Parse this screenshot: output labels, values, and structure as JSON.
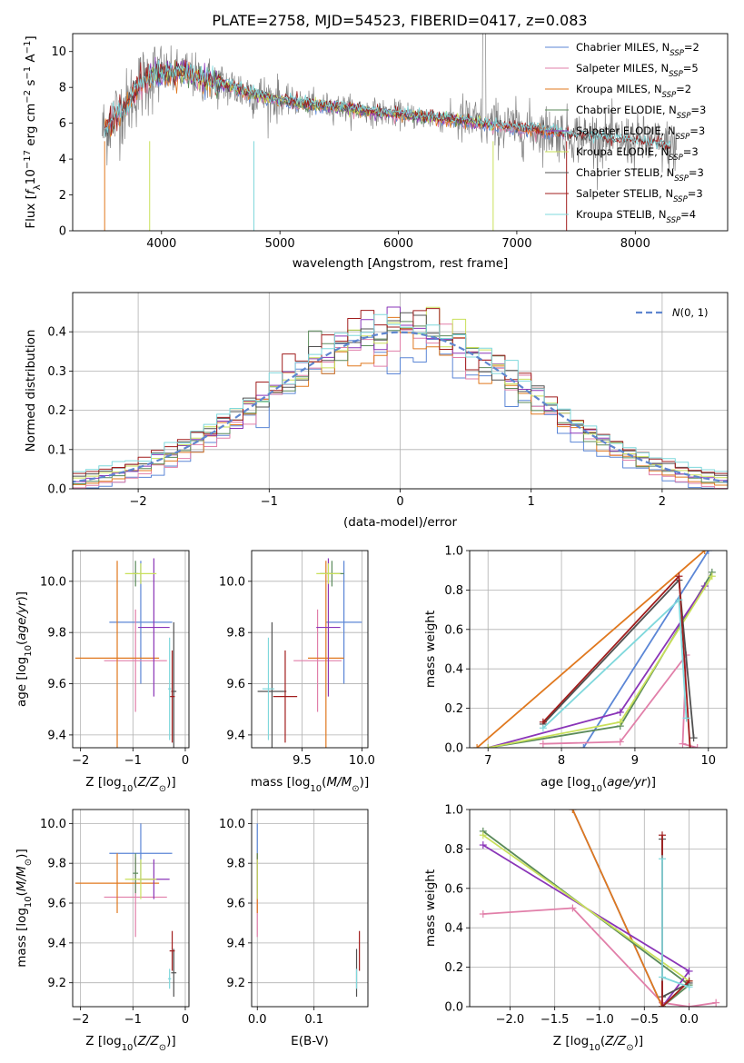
{
  "title": "PLATE=2758, MJD=54523, FIBERID=0417, z=0.083",
  "colors": {
    "chabrier_miles": "#5b86d6",
    "salpeter_miles": "#e17fa9",
    "kroupa_miles": "#e0781e",
    "chabrier_elodie": "#5a8a5a",
    "salpeter_elodie": "#8a35b8",
    "kroupa_elodie": "#c9e05a",
    "chabrier_stelib": "#505050",
    "salpeter_stelib": "#a11d1d",
    "kroupa_stelib": "#7fd8dc",
    "data": "#808080",
    "gauss": "#5f86cf"
  },
  "chart_data": [
    {
      "id": "spectrum",
      "type": "line",
      "xlabel": "wavelength [Angstrom, rest frame]",
      "ylabel": "Flux [f_λ 10^-17 erg cm^-2 s^-1 A^-1]",
      "xlim": [
        3250,
        8780
      ],
      "ylim": [
        0,
        11
      ],
      "xticks": [
        4000,
        5000,
        6000,
        7000,
        8000
      ],
      "yticks": [
        0,
        2,
        4,
        6,
        8,
        10
      ],
      "legend_placement": "upper right",
      "legend": [
        {
          "key": "chabrier_miles",
          "label": "Chabrier MILES, N",
          "sub": "SSP",
          "eq": "=2"
        },
        {
          "key": "salpeter_miles",
          "label": "Salpeter MILES, N",
          "sub": "SSP",
          "eq": "=5"
        },
        {
          "key": "kroupa_miles",
          "label": "Kroupa MILES, N",
          "sub": "SSP",
          "eq": "=2"
        },
        {
          "key": "chabrier_elodie",
          "label": "Chabrier ELODIE, N",
          "sub": "SSP",
          "eq": "=3"
        },
        {
          "key": "salpeter_elodie",
          "label": "Salpeter ELODIE, N",
          "sub": "SSP",
          "eq": "=3"
        },
        {
          "key": "kroupa_elodie",
          "label": "Kroupa ELODIE, N",
          "sub": "SSP",
          "eq": "=3"
        },
        {
          "key": "chabrier_stelib",
          "label": "Chabrier STELIB, N",
          "sub": "SSP",
          "eq": "=3"
        },
        {
          "key": "salpeter_stelib",
          "label": "Salpeter STELIB, N",
          "sub": "SSP",
          "eq": "=3"
        },
        {
          "key": "kroupa_stelib",
          "label": "Kroupa STELIB, N",
          "sub": "SSP",
          "eq": "=4"
        }
      ],
      "continuum_x": [
        3520,
        3600,
        3700,
        3800,
        3900,
        4000,
        4100,
        4200,
        4300,
        4400,
        4500,
        4700,
        4900,
        5100,
        5300,
        5500,
        5700,
        6000,
        6300,
        6600,
        6900,
        7200,
        7500,
        7800,
        8100,
        8400
      ],
      "continuum_y": [
        5.6,
        6.4,
        6.9,
        8.0,
        8.6,
        8.8,
        8.7,
        8.9,
        8.5,
        8.4,
        8.2,
        7.8,
        7.4,
        7.2,
        7.0,
        6.9,
        6.7,
        6.5,
        6.3,
        6.1,
        5.8,
        5.6,
        5.3,
        5.1,
        4.9,
        4.6
      ],
      "data_xrange": [
        3500,
        8350
      ]
    },
    {
      "id": "residuals",
      "type": "histogram",
      "xlabel": "(data-model)/error",
      "ylabel": "Normed distribution",
      "xlim": [
        -2.5,
        2.5
      ],
      "ylim": [
        0,
        0.5
      ],
      "xticks": [
        -2,
        -1,
        0,
        1,
        2
      ],
      "yticks": [
        0.0,
        0.1,
        0.2,
        0.3,
        0.4
      ],
      "bin_width": 0.1,
      "legend": [
        "N(0,1)"
      ],
      "legend_placement": "upper right",
      "reference": "standard normal N(0,1)"
    },
    {
      "id": "age_vs_Z",
      "type": "errorbar",
      "xlabel": "Z [log10(Z/Z⊙)]",
      "ylabel": "age  [log10(age/yr)]",
      "xlim": [
        -2.15,
        0.07
      ],
      "ylim": [
        9.35,
        10.12
      ],
      "xticks": [
        -2,
        -1,
        0
      ],
      "yticks": [
        9.4,
        9.6,
        9.8,
        10.0
      ],
      "points": [
        {
          "key": "chabrier_miles",
          "x": -0.85,
          "xerr": 0.6,
          "y": 9.84,
          "yerr": 0.24
        },
        {
          "key": "salpeter_miles",
          "x": -0.95,
          "xerr": 0.6,
          "y": 9.69,
          "yerr": 0.2
        },
        {
          "key": "kroupa_miles",
          "x": -1.3,
          "xerr": 0.8,
          "y": 9.7,
          "yerr": 0.38
        },
        {
          "key": "chabrier_elodie",
          "x": -0.95,
          "xerr": 0.05,
          "y": 10.03,
          "yerr": 0.05
        },
        {
          "key": "salpeter_elodie",
          "x": -0.6,
          "xerr": 0.3,
          "y": 9.82,
          "yerr": 0.27
        },
        {
          "key": "kroupa_elodie",
          "x": -0.85,
          "xerr": 0.3,
          "y": 10.03,
          "yerr": 0.04
        },
        {
          "key": "chabrier_stelib",
          "x": -0.22,
          "xerr": 0.05,
          "y": 9.57,
          "yerr": 0.27
        },
        {
          "key": "salpeter_stelib",
          "x": -0.25,
          "xerr": 0.05,
          "y": 9.55,
          "yerr": 0.18
        },
        {
          "key": "kroupa_stelib",
          "x": -0.3,
          "xerr": 0.03,
          "y": 9.58,
          "yerr": 0.2
        }
      ]
    },
    {
      "id": "age_vs_mass",
      "type": "errorbar",
      "xlabel": "mass [log10(M/M⊙)]",
      "ylabel": "",
      "xlim": [
        9.08,
        10.05
      ],
      "ylim": [
        9.35,
        10.12
      ],
      "xticks": [
        9.5,
        10.0
      ],
      "yticks": [
        9.4,
        9.6,
        9.8,
        10.0
      ],
      "points": [
        {
          "key": "chabrier_miles",
          "x": 9.85,
          "xerr": 0.15,
          "y": 9.84,
          "yerr": 0.24
        },
        {
          "key": "salpeter_miles",
          "x": 9.63,
          "xerr": 0.2,
          "y": 9.69,
          "yerr": 0.2
        },
        {
          "key": "kroupa_miles",
          "x": 9.7,
          "xerr": 0.15,
          "y": 9.7,
          "yerr": 0.38
        },
        {
          "key": "chabrier_elodie",
          "x": 9.75,
          "xerr": 0.1,
          "y": 10.03,
          "yerr": 0.05
        },
        {
          "key": "salpeter_elodie",
          "x": 9.72,
          "xerr": 0.1,
          "y": 9.82,
          "yerr": 0.27
        },
        {
          "key": "kroupa_elodie",
          "x": 9.72,
          "xerr": 0.1,
          "y": 10.03,
          "yerr": 0.04
        },
        {
          "key": "chabrier_stelib",
          "x": 9.25,
          "xerr": 0.12,
          "y": 9.57,
          "yerr": 0.27
        },
        {
          "key": "salpeter_stelib",
          "x": 9.36,
          "xerr": 0.1,
          "y": 9.55,
          "yerr": 0.18
        },
        {
          "key": "kroupa_stelib",
          "x": 9.22,
          "xerr": 0.05,
          "y": 9.58,
          "yerr": 0.2
        }
      ]
    },
    {
      "id": "weight_vs_age",
      "type": "line",
      "xlabel": "age  [log10(age/yr)]",
      "ylabel": "mass weight",
      "xlim": [
        6.75,
        10.25
      ],
      "ylim": [
        0,
        1
      ],
      "xticks": [
        7,
        8,
        9,
        10
      ],
      "yticks": [
        0.0,
        0.2,
        0.4,
        0.6,
        0.8,
        1.0
      ],
      "series": [
        {
          "key": "chabrier_miles",
          "x": [
            8.3,
            10.0
          ],
          "y": [
            0.0,
            1.0
          ]
        },
        {
          "key": "salpeter_miles",
          "x": [
            7.75,
            8.8,
            9.7,
            9.65,
            9.85
          ],
          "y": [
            0.02,
            0.03,
            0.47,
            0.02,
            0.0
          ]
        },
        {
          "key": "kroupa_miles",
          "x": [
            6.85,
            9.95
          ],
          "y": [
            0.0,
            1.0
          ]
        },
        {
          "key": "chabrier_elodie",
          "x": [
            7.0,
            8.8,
            10.05
          ],
          "y": [
            0.0,
            0.11,
            0.89
          ]
        },
        {
          "key": "salpeter_elodie",
          "x": [
            7.0,
            8.8,
            9.95
          ],
          "y": [
            0.0,
            0.18,
            0.82
          ]
        },
        {
          "key": "kroupa_elodie",
          "x": [
            7.0,
            8.8,
            10.05
          ],
          "y": [
            0.0,
            0.13,
            0.87
          ]
        },
        {
          "key": "chabrier_stelib",
          "x": [
            7.75,
            9.6,
            9.8
          ],
          "y": [
            0.12,
            0.85,
            0.05
          ]
        },
        {
          "key": "salpeter_stelib",
          "x": [
            7.75,
            9.6,
            9.75
          ],
          "y": [
            0.13,
            0.87,
            0.0
          ]
        },
        {
          "key": "kroupa_stelib",
          "x": [
            7.75,
            9.6,
            9.7
          ],
          "y": [
            0.1,
            0.75,
            0.15
          ]
        }
      ]
    },
    {
      "id": "mass_vs_Z",
      "type": "errorbar",
      "xlabel": "Z [log10(Z/Z⊙)]",
      "ylabel": "mass [log10(M/M⊙)]",
      "xlim": [
        -2.15,
        0.07
      ],
      "ylim": [
        9.08,
        10.07
      ],
      "xticks": [
        -2,
        -1,
        0
      ],
      "yticks": [
        9.2,
        9.4,
        9.6,
        9.8,
        10.0
      ],
      "points": [
        {
          "key": "chabrier_miles",
          "x": -0.85,
          "xerr": 0.6,
          "y": 9.85,
          "yerr": 0.15
        },
        {
          "key": "salpeter_miles",
          "x": -0.95,
          "xerr": 0.6,
          "y": 9.63,
          "yerr": 0.2
        },
        {
          "key": "kroupa_miles",
          "x": -1.3,
          "xerr": 0.8,
          "y": 9.7,
          "yerr": 0.15
        },
        {
          "key": "chabrier_elodie",
          "x": -0.95,
          "xerr": 0.05,
          "y": 9.75,
          "yerr": 0.1
        },
        {
          "key": "salpeter_elodie",
          "x": -0.6,
          "xerr": 0.3,
          "y": 9.72,
          "yerr": 0.1
        },
        {
          "key": "kroupa_elodie",
          "x": -0.85,
          "xerr": 0.3,
          "y": 9.72,
          "yerr": 0.1
        },
        {
          "key": "chabrier_stelib",
          "x": -0.22,
          "xerr": 0.05,
          "y": 9.25,
          "yerr": 0.12
        },
        {
          "key": "salpeter_stelib",
          "x": -0.25,
          "xerr": 0.05,
          "y": 9.36,
          "yerr": 0.1
        },
        {
          "key": "kroupa_stelib",
          "x": -0.3,
          "xerr": 0.03,
          "y": 9.22,
          "yerr": 0.05
        }
      ]
    },
    {
      "id": "mass_vs_ebv",
      "type": "errorbar",
      "xlabel": "E(B-V)",
      "ylabel": "",
      "xlim": [
        -0.01,
        0.195
      ],
      "ylim": [
        9.08,
        10.07
      ],
      "xticks": [
        0.0,
        0.1
      ],
      "yticks": [
        9.2,
        9.4,
        9.6,
        9.8,
        10.0
      ],
      "points": [
        {
          "key": "chabrier_miles",
          "x": 0.0,
          "y": 9.85,
          "yerr": 0.15
        },
        {
          "key": "salpeter_miles",
          "x": 0.0,
          "y": 9.63,
          "yerr": 0.2
        },
        {
          "key": "kroupa_miles",
          "x": 0.0,
          "y": 9.7,
          "yerr": 0.15
        },
        {
          "key": "chabrier_elodie",
          "x": 0.0,
          "y": 9.75,
          "yerr": 0.1
        },
        {
          "key": "salpeter_elodie",
          "x": 0.0,
          "y": 9.72,
          "yerr": 0.1
        },
        {
          "key": "kroupa_elodie",
          "x": 0.0,
          "y": 9.72,
          "yerr": 0.1
        },
        {
          "key": "chabrier_stelib",
          "x": 0.175,
          "y": 9.25,
          "yerr": 0.12
        },
        {
          "key": "salpeter_stelib",
          "x": 0.18,
          "y": 9.36,
          "yerr": 0.1
        },
        {
          "key": "kroupa_stelib",
          "x": 0.175,
          "y": 9.22,
          "yerr": 0.05
        }
      ]
    },
    {
      "id": "weight_vs_Z",
      "type": "line",
      "xlabel": "Z [log10(Z/Z⊙)]",
      "ylabel": "mass weight",
      "xlim": [
        -2.45,
        0.42
      ],
      "ylim": [
        0,
        1
      ],
      "xticks": [
        -2.0,
        -1.5,
        -1.0,
        -0.5,
        0.0
      ],
      "yticks": [
        0.0,
        0.2,
        0.4,
        0.6,
        0.8,
        1.0
      ],
      "series": [
        {
          "key": "chabrier_miles",
          "x": [
            -1.3,
            -0.3
          ],
          "y": [
            1.0,
            0.0
          ]
        },
        {
          "key": "salpeter_miles",
          "x": [
            -2.3,
            -1.3,
            -0.3,
            0.0,
            0.3
          ],
          "y": [
            0.47,
            0.5,
            0.02,
            0.0,
            0.02
          ]
        },
        {
          "key": "kroupa_miles",
          "x": [
            -1.3,
            -0.3
          ],
          "y": [
            1.0,
            0.0
          ]
        },
        {
          "key": "chabrier_elodie",
          "x": [
            -2.3,
            0.0,
            -0.3
          ],
          "y": [
            0.89,
            0.11,
            0.0
          ]
        },
        {
          "key": "salpeter_elodie",
          "x": [
            -2.3,
            0.0,
            -0.3
          ],
          "y": [
            0.82,
            0.18,
            0.0
          ]
        },
        {
          "key": "kroupa_elodie",
          "x": [
            -2.3,
            0.0,
            -0.3
          ],
          "y": [
            0.87,
            0.13,
            0.0
          ]
        },
        {
          "key": "chabrier_stelib",
          "x": [
            -0.3,
            -0.3,
            0.0
          ],
          "y": [
            0.85,
            0.05,
            0.12
          ]
        },
        {
          "key": "salpeter_stelib",
          "x": [
            -0.3,
            -0.3,
            0.0
          ],
          "y": [
            0.87,
            0.0,
            0.13
          ]
        },
        {
          "key": "kroupa_stelib",
          "x": [
            -0.3,
            -0.3,
            0.0
          ],
          "y": [
            0.75,
            0.15,
            0.1
          ]
        }
      ]
    }
  ]
}
